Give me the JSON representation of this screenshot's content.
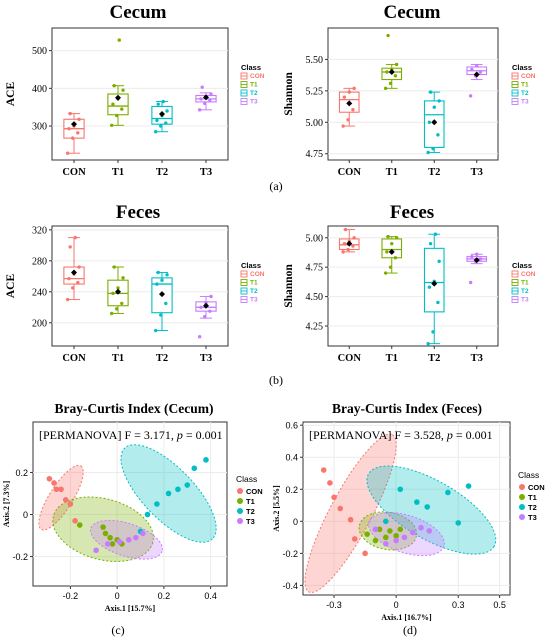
{
  "colors": {
    "CON": "#F8766D",
    "T1": "#7CAE00",
    "T2": "#00BFC4",
    "T3": "#C77CFF"
  },
  "panel_labels": {
    "a": "(a)",
    "b": "(b)",
    "c": "(c)",
    "d": "(d)"
  },
  "legend_title": "Class",
  "groups": [
    "CON",
    "T1",
    "T2",
    "T3"
  ],
  "chart_data": [
    {
      "type": "box",
      "title": "Cecum",
      "ylabel": "ACE",
      "categories": [
        "CON",
        "T1",
        "T2",
        "T3"
      ],
      "ylim": [
        210,
        560
      ],
      "yticks": [
        300,
        400,
        500
      ],
      "legend": "right",
      "boxes": [
        {
          "name": "CON",
          "min": 228,
          "q1": 268,
          "median": 293,
          "q3": 318,
          "max": 333,
          "mean": 305,
          "points": [
            228,
            268,
            282,
            293,
            300,
            318,
            333
          ]
        },
        {
          "name": "T1",
          "min": 302,
          "q1": 330,
          "median": 353,
          "q3": 385,
          "max": 407,
          "mean": 375,
          "points": [
            302,
            328,
            345,
            358,
            372,
            395,
            407,
            528
          ]
        },
        {
          "name": "T2",
          "min": 285,
          "q1": 305,
          "median": 320,
          "q3": 352,
          "max": 365,
          "mean": 332,
          "points": [
            285,
            300,
            308,
            315,
            328,
            340,
            358,
            365
          ]
        },
        {
          "name": "T3",
          "min": 343,
          "q1": 364,
          "median": 372,
          "q3": 381,
          "max": 388,
          "mean": 376,
          "points": [
            343,
            360,
            368,
            372,
            378,
            384,
            403
          ]
        }
      ]
    },
    {
      "type": "box",
      "title": "Cecum",
      "ylabel": "Shannon",
      "categories": [
        "CON",
        "T1",
        "T2",
        "T3"
      ],
      "ylim": [
        4.7,
        5.75
      ],
      "yticks": [
        4.75,
        5.0,
        5.25,
        5.5
      ],
      "legend": "right",
      "boxes": [
        {
          "name": "CON",
          "min": 4.97,
          "q1": 5.08,
          "median": 5.18,
          "q3": 5.24,
          "max": 5.27,
          "mean": 5.15,
          "points": [
            4.97,
            5.02,
            5.1,
            5.2,
            5.24,
            5.27
          ]
        },
        {
          "name": "T1",
          "min": 5.27,
          "q1": 5.34,
          "median": 5.4,
          "q3": 5.43,
          "max": 5.46,
          "mean": 5.4,
          "points": [
            5.27,
            5.31,
            5.37,
            5.4,
            5.42,
            5.46,
            5.69
          ]
        },
        {
          "name": "T2",
          "min": 4.76,
          "q1": 4.8,
          "median": 5.06,
          "q3": 5.17,
          "max": 5.24,
          "mean": 5.0,
          "points": [
            4.76,
            4.79,
            4.9,
            5.0,
            5.12,
            5.17,
            5.24
          ]
        },
        {
          "name": "T3",
          "min": 5.34,
          "q1": 5.38,
          "median": 5.41,
          "q3": 5.44,
          "max": 5.46,
          "mean": 5.38,
          "points": [
            5.21,
            5.37,
            5.4,
            5.42,
            5.45
          ]
        }
      ]
    },
    {
      "type": "box",
      "title": "Feces",
      "ylabel": "ACE",
      "categories": [
        "CON",
        "T1",
        "T2",
        "T3"
      ],
      "ylim": [
        170,
        325
      ],
      "yticks": [
        200,
        240,
        280,
        320
      ],
      "legend": "right",
      "boxes": [
        {
          "name": "CON",
          "min": 230,
          "q1": 250,
          "median": 257,
          "q3": 272,
          "max": 310,
          "mean": 265,
          "points": [
            230,
            245,
            252,
            257,
            263,
            272,
            298,
            310
          ]
        },
        {
          "name": "T1",
          "min": 212,
          "q1": 222,
          "median": 238,
          "q3": 255,
          "max": 272,
          "mean": 240,
          "points": [
            212,
            218,
            225,
            238,
            245,
            258,
            272
          ]
        },
        {
          "name": "T2",
          "min": 190,
          "q1": 213,
          "median": 250,
          "q3": 258,
          "max": 265,
          "mean": 237,
          "points": [
            190,
            210,
            225,
            250,
            255,
            262,
            265
          ]
        },
        {
          "name": "T3",
          "min": 206,
          "q1": 215,
          "median": 220,
          "q3": 227,
          "max": 234,
          "mean": 222,
          "points": [
            182,
            208,
            215,
            220,
            226,
            234
          ]
        }
      ]
    },
    {
      "type": "box",
      "title": "Feces",
      "ylabel": "Shannon",
      "categories": [
        "CON",
        "T1",
        "T2",
        "T3"
      ],
      "ylim": [
        4.08,
        5.1
      ],
      "yticks": [
        4.25,
        4.5,
        4.75,
        5.0
      ],
      "legend": "right",
      "boxes": [
        {
          "name": "CON",
          "min": 4.88,
          "q1": 4.9,
          "median": 4.94,
          "q3": 4.99,
          "max": 5.07,
          "mean": 4.95,
          "points": [
            4.88,
            4.9,
            4.93,
            4.95,
            4.97,
            5.0,
            5.07
          ]
        },
        {
          "name": "T1",
          "min": 4.7,
          "q1": 4.83,
          "median": 4.9,
          "q3": 4.99,
          "max": 5.01,
          "mean": 4.88,
          "points": [
            4.7,
            4.75,
            4.83,
            4.88,
            4.95,
            5.0,
            5.01
          ]
        },
        {
          "name": "T2",
          "min": 4.1,
          "q1": 4.37,
          "median": 4.62,
          "q3": 4.91,
          "max": 5.03,
          "mean": 4.61,
          "points": [
            4.1,
            4.2,
            4.45,
            4.58,
            4.63,
            4.8,
            4.95,
            5.03
          ]
        },
        {
          "name": "T3",
          "min": 4.78,
          "q1": 4.8,
          "median": 4.82,
          "q3": 4.84,
          "max": 4.86,
          "mean": 4.81,
          "points": [
            4.62,
            4.8,
            4.82,
            4.84,
            4.86
          ]
        }
      ]
    },
    {
      "type": "scatter",
      "title": "Bray-Curtis Index (Cecum)",
      "annotation": {
        "prefix": "[PERMANOVA] F = 3.171, ",
        "p_label": "p",
        "suffix": " = 0.001"
      },
      "xlabel": "Axis.1 [15.7%]",
      "ylabel": "Axis.2 [7.3%]",
      "xlim": [
        -0.36,
        0.47
      ],
      "ylim": [
        -0.34,
        0.44
      ],
      "xticks": [
        -0.2,
        0.0,
        0.2,
        0.4
      ],
      "yticks": [
        -0.2,
        0.0,
        0.2
      ],
      "legend": "right",
      "series": [
        {
          "name": "CON",
          "points": [
            [
              -0.29,
              0.17
            ],
            [
              -0.27,
              0.15
            ],
            [
              -0.26,
              0.12
            ],
            [
              -0.24,
              0.12
            ],
            [
              -0.22,
              0.07
            ],
            [
              -0.2,
              0.05
            ],
            [
              -0.18,
              -0.03
            ]
          ]
        },
        {
          "name": "T1",
          "points": [
            [
              -0.16,
              -0.05
            ],
            [
              -0.06,
              -0.06
            ],
            [
              -0.05,
              -0.09
            ],
            [
              -0.03,
              -0.11
            ],
            [
              -0.02,
              -0.14
            ],
            [
              0.0,
              -0.12
            ],
            [
              0.02,
              -0.14
            ]
          ]
        },
        {
          "name": "T2",
          "points": [
            [
              0.1,
              -0.08
            ],
            [
              0.13,
              0.0
            ],
            [
              0.17,
              0.05
            ],
            [
              0.22,
              0.1
            ],
            [
              0.26,
              0.12
            ],
            [
              0.3,
              0.14
            ],
            [
              0.33,
              0.22
            ],
            [
              0.38,
              0.26
            ]
          ]
        },
        {
          "name": "T3",
          "points": [
            [
              -0.09,
              -0.17
            ],
            [
              -0.04,
              -0.14
            ],
            [
              0.01,
              -0.13
            ],
            [
              0.05,
              -0.12
            ],
            [
              0.08,
              -0.11
            ],
            [
              0.11,
              -0.09
            ]
          ]
        }
      ],
      "ellipses": [
        {
          "name": "CON",
          "cx": -0.24,
          "cy": 0.08,
          "rx": 0.16,
          "ry": 0.05,
          "angle": -58
        },
        {
          "name": "T1",
          "cx": -0.06,
          "cy": -0.07,
          "rx": 0.22,
          "ry": 0.13,
          "angle": 15
        },
        {
          "name": "T2",
          "cx": 0.22,
          "cy": 0.1,
          "rx": 0.27,
          "ry": 0.11,
          "angle": 46
        },
        {
          "name": "T3",
          "cx": 0.04,
          "cy": -0.12,
          "rx": 0.16,
          "ry": 0.07,
          "angle": 18
        }
      ]
    },
    {
      "type": "scatter",
      "title": "Bray-Curtis Index (Feces)",
      "annotation": {
        "prefix": "[PERMANOVA] F = 3.528, ",
        "p_label": "p",
        "suffix": " = 0.001"
      },
      "xlabel": "Axis.1 [16.7%]",
      "ylabel": "Axis.2 [5.5%]",
      "xlim": [
        -0.45,
        0.55
      ],
      "ylim": [
        -0.46,
        0.62
      ],
      "xticks": [
        -0.3,
        0.0,
        0.3,
        0.5
      ],
      "yticks": [
        -0.4,
        -0.2,
        0.0,
        0.2,
        0.4,
        0.6
      ],
      "legend": "right",
      "series": [
        {
          "name": "CON",
          "points": [
            [
              -0.35,
              0.32
            ],
            [
              -0.32,
              0.24
            ],
            [
              -0.3,
              0.15
            ],
            [
              -0.27,
              0.08
            ],
            [
              -0.22,
              0.01
            ],
            [
              -0.2,
              -0.11
            ],
            [
              -0.15,
              -0.2
            ]
          ]
        },
        {
          "name": "T1",
          "points": [
            [
              -0.14,
              -0.08
            ],
            [
              -0.1,
              -0.12
            ],
            [
              -0.08,
              -0.05
            ],
            [
              -0.05,
              -0.1
            ],
            [
              -0.03,
              -0.06
            ],
            [
              0.0,
              -0.09
            ],
            [
              0.02,
              -0.05
            ]
          ]
        },
        {
          "name": "T2",
          "points": [
            [
              -0.05,
              0.0
            ],
            [
              0.02,
              0.2
            ],
            [
              0.1,
              0.12
            ],
            [
              0.15,
              0.09
            ],
            [
              0.25,
              0.18
            ],
            [
              0.35,
              0.22
            ],
            [
              0.3,
              -0.01
            ]
          ]
        },
        {
          "name": "T3",
          "points": [
            [
              -0.1,
              -0.05
            ],
            [
              -0.05,
              -0.14
            ],
            [
              0.0,
              -0.12
            ],
            [
              0.04,
              -0.1
            ],
            [
              0.08,
              -0.07
            ],
            [
              0.12,
              -0.04
            ],
            [
              0.16,
              -0.06
            ]
          ]
        }
      ],
      "ellipses": [
        {
          "name": "CON",
          "cx": -0.22,
          "cy": 0.05,
          "rx": 0.43,
          "ry": 0.1,
          "angle": -62
        },
        {
          "name": "T1",
          "cx": -0.04,
          "cy": -0.06,
          "rx": 0.14,
          "ry": 0.09,
          "angle": 10
        },
        {
          "name": "T2",
          "cx": 0.17,
          "cy": 0.07,
          "rx": 0.35,
          "ry": 0.14,
          "angle": 30
        },
        {
          "name": "T3",
          "cx": 0.05,
          "cy": -0.08,
          "rx": 0.19,
          "ry": 0.09,
          "angle": 18
        }
      ]
    }
  ]
}
